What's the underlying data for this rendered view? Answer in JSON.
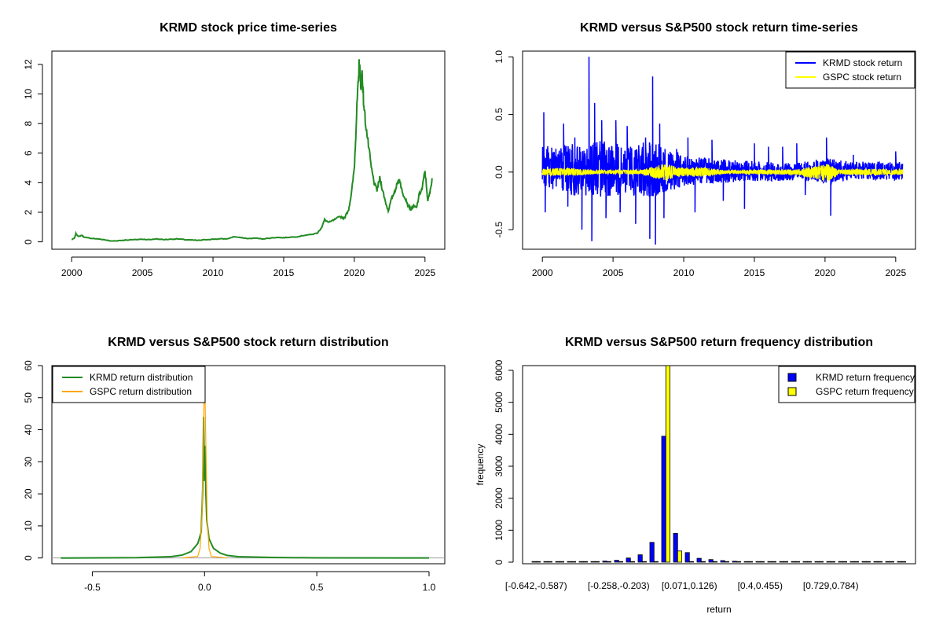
{
  "colors": {
    "krmd_line": "#228b22",
    "gspc_line_dist": "#ffa500",
    "krmd_return": "#0000ff",
    "gspc_return": "#ffff00",
    "axis": "#000000"
  },
  "chart_data": [
    {
      "id": "price",
      "type": "line",
      "title": "KRMD stock price time-series",
      "xlabel": "",
      "ylabel": "",
      "xlim": [
        1998.6,
        2026.4
      ],
      "ylim": [
        -0.5,
        12.9
      ],
      "x_ticks": [
        "2000",
        "2005",
        "2010",
        "2015",
        "2020",
        "2025"
      ],
      "y_ticks": [
        "0",
        "2",
        "4",
        "6",
        "8",
        "10",
        "12"
      ],
      "series": [
        {
          "color": "#228b22",
          "points": [
            [
              2000.0,
              0.15
            ],
            [
              2000.2,
              0.25
            ],
            [
              2000.3,
              0.55
            ],
            [
              2000.5,
              0.35
            ],
            [
              2000.7,
              0.45
            ],
            [
              2000.9,
              0.3
            ],
            [
              2001.3,
              0.25
            ],
            [
              2001.8,
              0.2
            ],
            [
              2002.3,
              0.15
            ],
            [
              2002.8,
              0.05
            ],
            [
              2003.3,
              0.08
            ],
            [
              2003.8,
              0.12
            ],
            [
              2004.5,
              0.15
            ],
            [
              2005.0,
              0.18
            ],
            [
              2005.5,
              0.15
            ],
            [
              2006.0,
              0.2
            ],
            [
              2006.5,
              0.15
            ],
            [
              2007.0,
              0.18
            ],
            [
              2007.5,
              0.2
            ],
            [
              2008.0,
              0.15
            ],
            [
              2008.5,
              0.12
            ],
            [
              2009.0,
              0.1
            ],
            [
              2009.5,
              0.15
            ],
            [
              2010.0,
              0.18
            ],
            [
              2010.5,
              0.2
            ],
            [
              2011.0,
              0.2
            ],
            [
              2011.5,
              0.35
            ],
            [
              2012.0,
              0.28
            ],
            [
              2012.5,
              0.22
            ],
            [
              2013.0,
              0.25
            ],
            [
              2013.5,
              0.2
            ],
            [
              2014.0,
              0.25
            ],
            [
              2014.5,
              0.3
            ],
            [
              2015.0,
              0.28
            ],
            [
              2015.5,
              0.32
            ],
            [
              2016.0,
              0.35
            ],
            [
              2016.5,
              0.45
            ],
            [
              2017.0,
              0.5
            ],
            [
              2017.4,
              0.6
            ],
            [
              2017.7,
              1.0
            ],
            [
              2017.9,
              1.5
            ],
            [
              2018.2,
              1.3
            ],
            [
              2018.6,
              1.5
            ],
            [
              2019.0,
              1.7
            ],
            [
              2019.3,
              1.6
            ],
            [
              2019.6,
              2.2
            ],
            [
              2019.8,
              3.3
            ],
            [
              2020.0,
              5.0
            ],
            [
              2020.1,
              7.2
            ],
            [
              2020.2,
              9.5
            ],
            [
              2020.3,
              11.0
            ],
            [
              2020.35,
              12.4
            ],
            [
              2020.45,
              10.5
            ],
            [
              2020.55,
              11.5
            ],
            [
              2020.65,
              9.5
            ],
            [
              2020.8,
              8.0
            ],
            [
              2021.0,
              6.5
            ],
            [
              2021.2,
              5.0
            ],
            [
              2021.4,
              4.0
            ],
            [
              2021.6,
              3.5
            ],
            [
              2021.8,
              4.3
            ],
            [
              2022.0,
              3.5
            ],
            [
              2022.2,
              2.7
            ],
            [
              2022.4,
              2.1
            ],
            [
              2022.6,
              2.8
            ],
            [
              2022.8,
              3.3
            ],
            [
              2023.0,
              3.8
            ],
            [
              2023.2,
              4.3
            ],
            [
              2023.4,
              3.3
            ],
            [
              2023.6,
              3.0
            ],
            [
              2023.8,
              2.5
            ],
            [
              2024.0,
              2.2
            ],
            [
              2024.2,
              2.4
            ],
            [
              2024.4,
              2.3
            ],
            [
              2024.6,
              3.2
            ],
            [
              2024.8,
              3.6
            ],
            [
              2025.0,
              4.8
            ],
            [
              2025.2,
              2.8
            ],
            [
              2025.35,
              3.3
            ],
            [
              2025.5,
              4.3
            ]
          ]
        }
      ]
    },
    {
      "id": "returns",
      "type": "line",
      "title": "KRMD versus S&P500 stock return time-series",
      "xlabel": "",
      "ylabel": "",
      "xlim": [
        1998.6,
        2026.4
      ],
      "ylim": [
        -0.67,
        1.05
      ],
      "x_ticks": [
        "2000",
        "2005",
        "2010",
        "2015",
        "2020",
        "2025"
      ],
      "y_ticks": [
        "-0.5",
        "0.0",
        "0.5",
        "1.0"
      ],
      "legend": {
        "position": "top-right",
        "entries": [
          "KRMD stock return",
          "GSPC stock return"
        ]
      },
      "series": [
        {
          "name": "KRMD stock return",
          "color": "#0000ff",
          "spikes": [
            [
              2000.1,
              0.52
            ],
            [
              2000.2,
              -0.35
            ],
            [
              2001.5,
              0.42
            ],
            [
              2001.8,
              -0.3
            ],
            [
              2002.3,
              0.3
            ],
            [
              2002.8,
              -0.5
            ],
            [
              2003.3,
              1.0
            ],
            [
              2003.5,
              -0.6
            ],
            [
              2003.7,
              0.6
            ],
            [
              2004.2,
              0.45
            ],
            [
              2004.5,
              -0.4
            ],
            [
              2005.2,
              0.45
            ],
            [
              2005.5,
              -0.35
            ],
            [
              2006.0,
              0.4
            ],
            [
              2006.6,
              -0.45
            ],
            [
              2007.3,
              0.3
            ],
            [
              2007.6,
              -0.58
            ],
            [
              2007.8,
              0.83
            ],
            [
              2008.0,
              -0.63
            ],
            [
              2008.3,
              0.42
            ],
            [
              2008.6,
              -0.4
            ],
            [
              2009.5,
              0.2
            ],
            [
              2010.3,
              0.3
            ],
            [
              2010.8,
              -0.35
            ],
            [
              2012.0,
              0.28
            ],
            [
              2012.8,
              -0.25
            ],
            [
              2014.3,
              -0.32
            ],
            [
              2015.0,
              0.25
            ],
            [
              2016.0,
              0.22
            ],
            [
              2017.0,
              0.22
            ],
            [
              2018.0,
              0.25
            ],
            [
              2018.6,
              -0.2
            ],
            [
              2020.1,
              0.3
            ],
            [
              2020.4,
              -0.38
            ],
            [
              2022.0,
              0.15
            ],
            [
              2025.0,
              0.18
            ]
          ],
          "envelope": [
            [
              2000,
              0.22,
              -0.12
            ],
            [
              2002,
              0.25,
              -0.2
            ],
            [
              2004,
              0.28,
              -0.22
            ],
            [
              2006,
              0.25,
              -0.2
            ],
            [
              2008,
              0.26,
              -0.22
            ],
            [
              2010,
              0.15,
              -0.12
            ],
            [
              2012,
              0.12,
              -0.1
            ],
            [
              2014,
              0.1,
              -0.09
            ],
            [
              2016,
              0.09,
              -0.08
            ],
            [
              2018,
              0.08,
              -0.07
            ],
            [
              2020,
              0.12,
              -0.1
            ],
            [
              2022,
              0.09,
              -0.07
            ],
            [
              2025.5,
              0.09,
              -0.07
            ]
          ]
        },
        {
          "name": "GSPC stock return",
          "color": "#ffff00",
          "envelope": [
            [
              2000,
              0.03,
              -0.03
            ],
            [
              2002,
              0.035,
              -0.035
            ],
            [
              2004,
              0.015,
              -0.015
            ],
            [
              2007,
              0.02,
              -0.02
            ],
            [
              2008.8,
              0.08,
              -0.08
            ],
            [
              2009.5,
              0.04,
              -0.04
            ],
            [
              2011.5,
              0.04,
              -0.04
            ],
            [
              2013,
              0.015,
              -0.015
            ],
            [
              2015.5,
              0.02,
              -0.02
            ],
            [
              2018,
              0.025,
              -0.025
            ],
            [
              2020.2,
              0.07,
              -0.09
            ],
            [
              2021,
              0.02,
              -0.02
            ],
            [
              2022.5,
              0.03,
              -0.03
            ],
            [
              2025.5,
              0.025,
              -0.025
            ]
          ]
        }
      ]
    },
    {
      "id": "density",
      "type": "line",
      "title": "KRMD versus S&P500 stock return distribution",
      "xlabel": "",
      "ylabel": "",
      "xlim": [
        -0.68,
        1.07
      ],
      "ylim": [
        -1.8,
        60
      ],
      "x_ticks": [
        "-0.5",
        "0.0",
        "0.5",
        "1.0"
      ],
      "y_ticks": [
        "0",
        "10",
        "20",
        "30",
        "40",
        "50",
        "60"
      ],
      "legend": {
        "position": "top-left",
        "entries": [
          "KRMD return distribution",
          "GSPC return distribution"
        ]
      },
      "series": [
        {
          "name": "KRMD return distribution",
          "color": "#228b22",
          "points": [
            [
              -0.64,
              0
            ],
            [
              -0.3,
              0.1
            ],
            [
              -0.15,
              0.4
            ],
            [
              -0.1,
              0.9
            ],
            [
              -0.06,
              2.0
            ],
            [
              -0.03,
              4.5
            ],
            [
              -0.015,
              8
            ],
            [
              -0.008,
              22
            ],
            [
              -0.004,
              44
            ],
            [
              0.0,
              24
            ],
            [
              0.003,
              35
            ],
            [
              0.006,
              20
            ],
            [
              0.01,
              12
            ],
            [
              0.02,
              6
            ],
            [
              0.04,
              3
            ],
            [
              0.07,
              1.5
            ],
            [
              0.1,
              0.8
            ],
            [
              0.15,
              0.4
            ],
            [
              0.3,
              0.15
            ],
            [
              0.5,
              0.05
            ],
            [
              1.0,
              0.02
            ]
          ]
        },
        {
          "name": "GSPC return distribution",
          "color": "#ffa500",
          "points": [
            [
              -0.1,
              0
            ],
            [
              -0.03,
              0.5
            ],
            [
              -0.02,
              3
            ],
            [
              -0.012,
              12
            ],
            [
              -0.006,
              35
            ],
            [
              -0.002,
              50
            ],
            [
              0.0,
              56
            ],
            [
              0.002,
              50
            ],
            [
              0.006,
              35
            ],
            [
              0.012,
              12
            ],
            [
              0.02,
              3
            ],
            [
              0.03,
              0.5
            ],
            [
              0.1,
              0
            ]
          ]
        }
      ]
    },
    {
      "id": "frequency",
      "type": "bar",
      "title": "KRMD versus S&P500 return frequency distribution",
      "xlabel": "return",
      "ylabel": "frequency",
      "ylim": [
        0,
        6000
      ],
      "y_ticks": [
        "0",
        "1000",
        "2000",
        "3000",
        "4000",
        "5000",
        "6000"
      ],
      "x_tick_labels": [
        "[-0.642,-0.587)",
        "[-0.258,-0.203)",
        "[0.071,0.126)",
        "[0.4,0.455)",
        "[0.729,0.784)"
      ],
      "x_tick_positions": [
        0,
        7,
        13,
        19,
        25
      ],
      "legend": {
        "position": "top-right",
        "entries": [
          "KRMD return frequency",
          "GSPC return frequency"
        ]
      },
      "series": [
        {
          "name": "KRMD return frequency",
          "color": "#0000ff",
          "values": [
            5,
            10,
            8,
            12,
            15,
            20,
            35,
            60,
            130,
            230,
            620,
            3940,
            900,
            300,
            120,
            80,
            50,
            30,
            20,
            10,
            6,
            5,
            4,
            3,
            3,
            2,
            2,
            2,
            1,
            1,
            1,
            1
          ]
        },
        {
          "name": "GSPC return frequency",
          "color": "#ffff00",
          "values": [
            0,
            0,
            0,
            0,
            0,
            0,
            0,
            0,
            0,
            2,
            15,
            6200,
            350,
            5,
            0,
            0,
            0,
            0,
            0,
            0,
            0,
            0,
            0,
            0,
            0,
            0,
            0,
            0,
            0,
            0,
            0,
            0
          ]
        }
      ]
    }
  ]
}
